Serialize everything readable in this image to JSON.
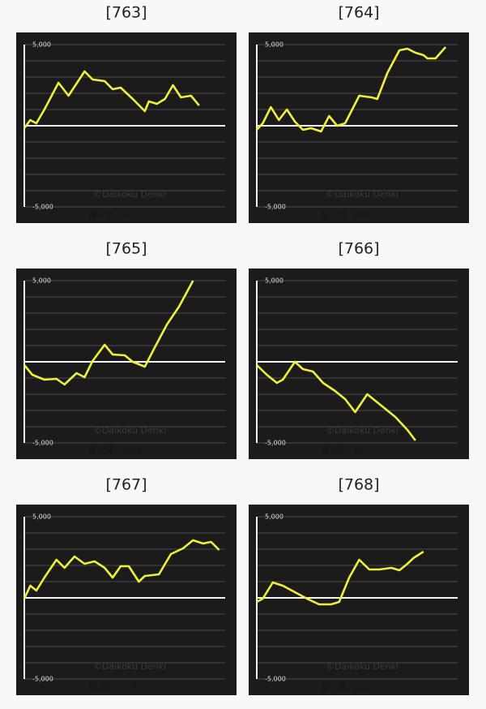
{
  "chart_data": [
    {
      "type": "line",
      "title": "[763]",
      "xlim": [
        0,
        100
      ],
      "ylim": [
        -5000,
        5000
      ],
      "yticks": [
        {
          "value": 5000,
          "label": "5,000"
        },
        {
          "value": -5000,
          "label": "-5,000"
        }
      ],
      "gridlines": [
        4000,
        3000,
        2000,
        1000,
        0,
        -1000,
        -2000,
        -3000,
        -4000
      ],
      "x": [
        0,
        3,
        6,
        10,
        17,
        22,
        30,
        34,
        40,
        44,
        48,
        54,
        60,
        62,
        66,
        70,
        74,
        78,
        83,
        87
      ],
      "series": [
        {
          "color": "#f2ee3c",
          "values": [
            -150,
            350,
            150,
            1000,
            2650,
            1850,
            3350,
            2850,
            2750,
            2250,
            2350,
            1650,
            900,
            1500,
            1350,
            1650,
            2500,
            1750,
            1850,
            1250
          ]
        }
      ],
      "watermark": "©Daikoku Denki",
      "note": "最大値：3335"
    },
    {
      "type": "line",
      "title": "[764]",
      "xlim": [
        0,
        100
      ],
      "ylim": [
        -5000,
        5000
      ],
      "yticks": [
        {
          "value": 5000,
          "label": "5,000"
        },
        {
          "value": -5000,
          "label": "-5,000"
        }
      ],
      "gridlines": [
        4000,
        3000,
        2000,
        1000,
        0,
        -1000,
        -2000,
        -3000,
        -4000
      ],
      "x": [
        0,
        3,
        7,
        11,
        15,
        19,
        23,
        27,
        32,
        36,
        40,
        44,
        51,
        57,
        60,
        65,
        71,
        75,
        79,
        83,
        85,
        89,
        94
      ],
      "series": [
        {
          "color": "#f2ee3c",
          "values": [
            -250,
            150,
            1150,
            350,
            1000,
            250,
            -250,
            -150,
            -350,
            600,
            0,
            150,
            1850,
            1750,
            1650,
            3250,
            4650,
            4750,
            4500,
            4350,
            4150,
            4150,
            4850
          ]
        }
      ],
      "watermark": "©Daikoku Denki",
      "note": "最大値：4890"
    },
    {
      "type": "line",
      "title": "[765]",
      "xlim": [
        0,
        100
      ],
      "ylim": [
        -5000,
        5000
      ],
      "yticks": [
        {
          "value": 5000,
          "label": "5,000"
        },
        {
          "value": -5000,
          "label": "-5,000"
        }
      ],
      "gridlines": [
        4000,
        3000,
        2000,
        1000,
        0,
        -1000,
        -2000,
        -3000,
        -4000
      ],
      "x": [
        0,
        4,
        10,
        16,
        20,
        26,
        30,
        34,
        40,
        44,
        50,
        54,
        60,
        65,
        71,
        77,
        84
      ],
      "series": [
        {
          "color": "#f2ee3c",
          "values": [
            -200,
            -800,
            -1100,
            -1050,
            -1400,
            -700,
            -950,
            50,
            1050,
            450,
            400,
            0,
            -300,
            900,
            2300,
            3400,
            5000
          ]
        }
      ],
      "watermark": "©Daikoku Denki",
      "note": "最大値：7580"
    },
    {
      "type": "line",
      "title": "[766]",
      "xlim": [
        0,
        100
      ],
      "ylim": [
        -5000,
        5000
      ],
      "yticks": [
        {
          "value": 5000,
          "label": "5,000"
        },
        {
          "value": -5000,
          "label": "-5,000"
        }
      ],
      "gridlines": [
        4000,
        3000,
        2000,
        1000,
        0,
        -1000,
        -2000,
        -3000,
        -4000
      ],
      "x": [
        0,
        5,
        10,
        13,
        19,
        23,
        28,
        33,
        39,
        44,
        49,
        55,
        61,
        69,
        75,
        79
      ],
      "series": [
        {
          "color": "#f2ee3c",
          "values": [
            -200,
            -800,
            -1300,
            -1100,
            0,
            -450,
            -600,
            -1300,
            -1800,
            -2300,
            -3100,
            -2000,
            -2600,
            -3400,
            -4200,
            -4850
          ]
        }
      ],
      "watermark": "©Daikoku Denki",
      "note": "最大値：72"
    },
    {
      "type": "line",
      "title": "[767]",
      "xlim": [
        0,
        100
      ],
      "ylim": [
        -5000,
        5000
      ],
      "yticks": [
        {
          "value": 5000,
          "label": "5,000"
        },
        {
          "value": -5000,
          "label": "-5,000"
        }
      ],
      "gridlines": [
        4000,
        3000,
        2000,
        1000,
        0,
        -1000,
        -2000,
        -3000,
        -4000
      ],
      "x": [
        0,
        3,
        6,
        10,
        16,
        20,
        25,
        30,
        35,
        40,
        44,
        48,
        52,
        57,
        60,
        67,
        73,
        79,
        84,
        89,
        93,
        97
      ],
      "series": [
        {
          "color": "#f2ee3c",
          "values": [
            -50,
            750,
            450,
            1250,
            2350,
            1850,
            2550,
            2100,
            2250,
            1850,
            1250,
            1950,
            1950,
            1000,
            1350,
            1450,
            2700,
            3050,
            3550,
            3350,
            3450,
            2950
          ]
        }
      ],
      "watermark": "©Daikoku Denki",
      "note": "最大値：3586"
    },
    {
      "type": "line",
      "title": "[768]",
      "xlim": [
        0,
        100
      ],
      "ylim": [
        -5000,
        5000
      ],
      "yticks": [
        {
          "value": 5000,
          "label": "5,000"
        },
        {
          "value": -5000,
          "label": "-5,000"
        }
      ],
      "gridlines": [
        4000,
        3000,
        2000,
        1000,
        0,
        -1000,
        -2000,
        -3000,
        -4000
      ],
      "x": [
        0,
        3,
        8,
        13,
        19,
        25,
        31,
        37,
        41,
        46,
        51,
        56,
        61,
        67,
        71,
        75,
        78,
        83
      ],
      "series": [
        {
          "color": "#f2ee3c",
          "values": [
            -250,
            -50,
            950,
            750,
            350,
            -50,
            -400,
            -400,
            -250,
            1250,
            2350,
            1750,
            1750,
            1850,
            1700,
            2100,
            2450,
            2850
          ]
        }
      ],
      "watermark": "©Daikoku Denki",
      "note": "最大値：2931"
    }
  ]
}
